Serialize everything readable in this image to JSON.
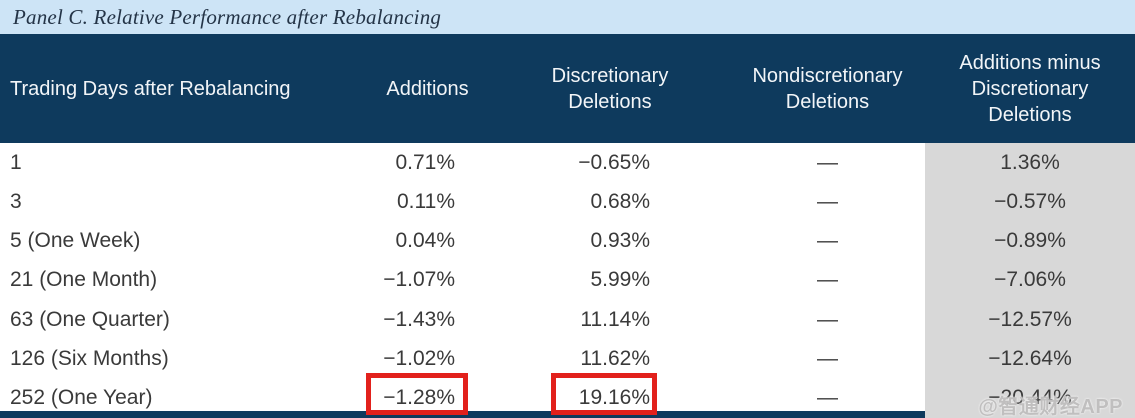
{
  "panel_title": "Panel C. Relative Performance after Rebalancing",
  "table": {
    "columns": [
      {
        "label": "Trading Days after Rebalancing"
      },
      {
        "label": "Additions"
      },
      {
        "label": "Discretionary\nDeletions"
      },
      {
        "label": "Nondiscretionary\nDeletions"
      },
      {
        "label": "Additions minus\nDiscretionary\nDeletions"
      }
    ],
    "rows": [
      {
        "label": "1",
        "values": [
          "0.71%",
          "−0.65%",
          "—",
          "1.36%"
        ]
      },
      {
        "label": "3",
        "values": [
          "0.11%",
          "0.68%",
          "—",
          "−0.57%"
        ]
      },
      {
        "label": "5 (One Week)",
        "values": [
          "0.04%",
          "0.93%",
          "—",
          "−0.89%"
        ]
      },
      {
        "label": "21 (One Month)",
        "values": [
          "−1.07%",
          "5.99%",
          "—",
          "−7.06%"
        ]
      },
      {
        "label": "63 (One Quarter)",
        "values": [
          "−1.43%",
          "11.14%",
          "—",
          "−12.57%"
        ]
      },
      {
        "label": "126 (Six Months)",
        "values": [
          "−1.02%",
          "11.62%",
          "—",
          "−12.64%"
        ]
      },
      {
        "label": "252 (One Year)",
        "values": [
          "−1.28%",
          "19.16%",
          "—",
          "−20.44%"
        ]
      }
    ]
  },
  "highlights": [
    {
      "row": "252 (One Year)",
      "column": "Additions",
      "value": "−1.28%"
    },
    {
      "row": "252 (One Year)",
      "column": "Discretionary Deletions",
      "value": "19.16%"
    }
  ],
  "watermark": "@智通财经APP",
  "colors": {
    "title_bar_bg": "#cde4f6",
    "header_bg": "#0e3a5d",
    "shaded_column_bg": "#d8d8d8",
    "highlight_border": "#e2211c",
    "body_text": "#3a3a3a",
    "header_text": "#f2f5f8",
    "watermark_text": "#c0bfbf"
  }
}
